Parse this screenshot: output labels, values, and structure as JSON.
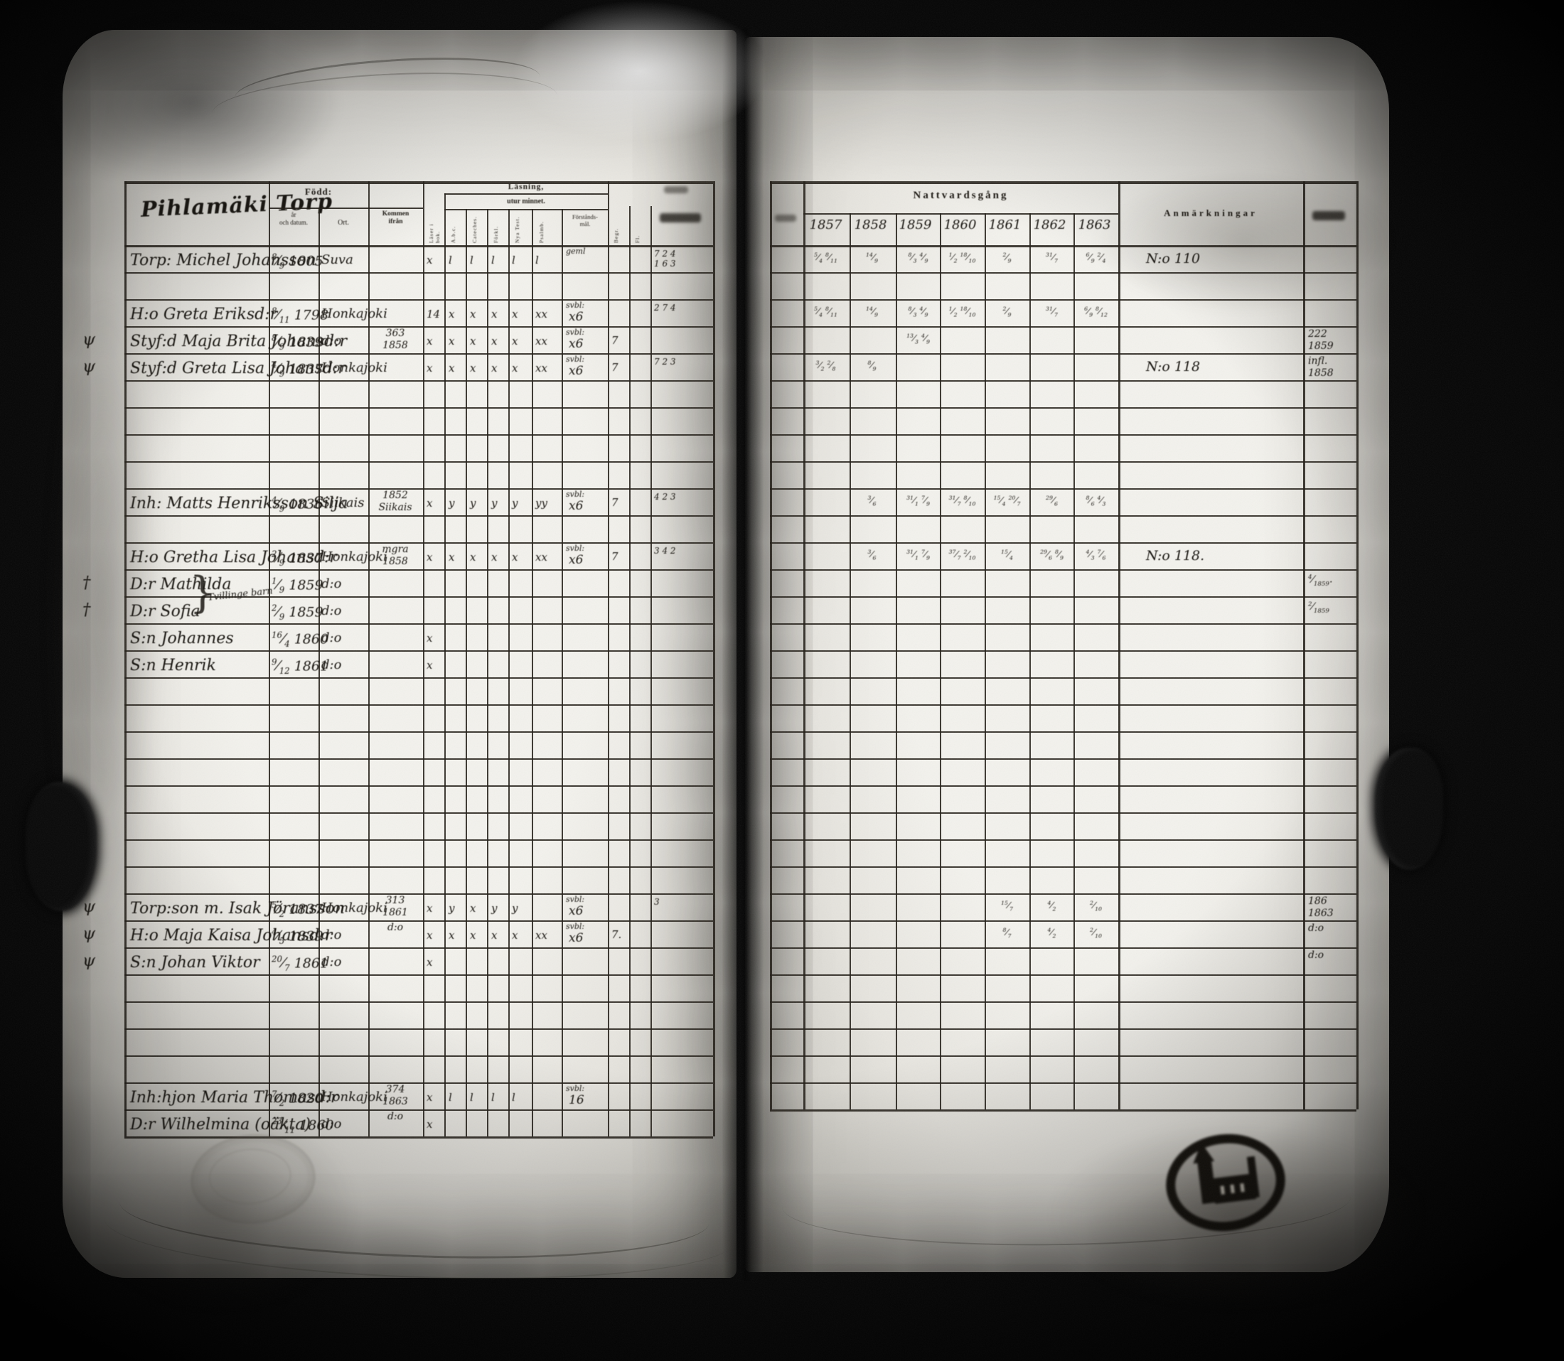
{
  "colors": {
    "ink": "#16130e",
    "paper": "#efede7",
    "background": "#060606"
  },
  "left_page": {
    "title": "Pihlamäki Torp",
    "header": {
      "born_group": "Född:",
      "born_date": "år\noch datum.",
      "born_place": "Ort.",
      "came_from": "Kommen\nifrån",
      "reading_line1": "Läsning,",
      "reading_line2": "utur minnet.",
      "cols": [
        "Läser i bok.",
        "A.b.c.",
        "Cateches.",
        "Förkl.",
        "Nya Test.",
        "Psalmb.",
        "Förstånds-\nmål.",
        "Begr.",
        "Fl."
      ]
    },
    "rows": [
      {
        "i": 0,
        "margin": "",
        "name": "Torp: Michel Johansson",
        "birth": "8/9 1805",
        "ort": "Suva",
        "from": "",
        "m": [
          "x",
          "l",
          "l",
          "l",
          "l",
          "l"
        ],
        "sup": "geml",
        "grade": "",
        "extra": "",
        "frac": "7 2 4\n1 6 3"
      },
      {
        "i": 2,
        "margin": "",
        "name": "H:o Greta Eriksd:r",
        "birth": "8/11 1798",
        "ort": "Honkajoki",
        "from": "",
        "m": [
          "14",
          "x",
          "x",
          "x",
          "x",
          "xx"
        ],
        "sup": "svbl:",
        "grade": "x6",
        "extra": "",
        "frac": "2 7 4"
      },
      {
        "i": 3,
        "margin": "ψ",
        "name": "Styf:d Maja Brita Johansd:r",
        "birth": "8/9 1839",
        "ort": "d:o",
        "from": "363\n1858",
        "m": [
          "x",
          "x",
          "x",
          "x",
          "x",
          "xx"
        ],
        "sup": "svbl:",
        "grade": "x6",
        "extra": "7",
        "frac": ""
      },
      {
        "i": 4,
        "margin": "ψ",
        "name": "Styf:d Greta Lisa Johansd:r",
        "birth": "4/9 1837",
        "ort": "Honkajoki",
        "from": "",
        "m": [
          "x",
          "x",
          "x",
          "x",
          "x",
          "xx"
        ],
        "sup": "svbl:",
        "grade": "x6",
        "extra": "7",
        "frac": "7 2 3"
      },
      {
        "i": 9,
        "margin": "",
        "name": "Inh: Matts Henriksson Silja",
        "birth": "4/9 1836",
        "ort": "Siikais",
        "from": "1852\nSiikais",
        "m": [
          "x",
          "y",
          "y",
          "y",
          "y",
          "yy"
        ],
        "sup": "svbl:",
        "grade": "x6",
        "extra": "7",
        "frac": "4 2 3"
      },
      {
        "i": 11,
        "margin": "",
        "name": "H:o Gretha Lisa Johansd:r",
        "birth": "2/9 1837",
        "ort": "Honkajoki",
        "from": "mgra\n1858",
        "m": [
          "x",
          "x",
          "x",
          "x",
          "x",
          "xx"
        ],
        "sup": "svbl:",
        "grade": "x6",
        "extra": "7",
        "frac": "3 4 2"
      },
      {
        "i": 12,
        "margin": "†",
        "name": "D:r Mathilda",
        "birth": "1/9 1859",
        "ort": "d:o",
        "brace": true,
        "note": "Tvillinge barn"
      },
      {
        "i": 13,
        "margin": "†",
        "name": "D:r Sofia",
        "birth": "2/9 1859",
        "ort": "d:o"
      },
      {
        "i": 14,
        "margin": "",
        "name": "S:n Johannes",
        "birth": "16/4 1860",
        "ort": "d:o",
        "m": [
          "x",
          "",
          "",
          "",
          "",
          ""
        ]
      },
      {
        "i": 15,
        "margin": "",
        "name": "S:n Henrik",
        "birth": "9/12 1861",
        "ort": "d:o",
        "m": [
          "x",
          "",
          "",
          "",
          "",
          ""
        ]
      },
      {
        "i": 24,
        "margin": "ψ",
        "name": "Torp:son m. Isak Jöransson",
        "birth": "5/2 1837",
        "ort": "Honkajoki",
        "from": "313\n1861",
        "m": [
          "x",
          "y",
          "x",
          "y",
          "y",
          ""
        ],
        "sup": "svbl:",
        "grade": "x6",
        "extra": "",
        "frac": "3"
      },
      {
        "i": 25,
        "margin": "ψ",
        "name": "H:o Maja Kaisa Johansd:r",
        "birth": "4/5 1839",
        "ort": "d:o",
        "from": "d:o",
        "m": [
          "x",
          "x",
          "x",
          "x",
          "x",
          "xx"
        ],
        "sup": "svbl:",
        "grade": "x6",
        "extra": "7."
      },
      {
        "i": 26,
        "margin": "ψ",
        "name": "S:n Johan Viktor",
        "birth": "20/7 1861",
        "ort": "d:o",
        "m": [
          "x",
          "",
          "",
          "",
          "",
          ""
        ]
      },
      {
        "i": 31,
        "margin": "",
        "name": "Inh:hjon Maria Thomasd:r",
        "birth": "7/2 1820",
        "ort": "Honkajoki",
        "from": "374\n1863",
        "m": [
          "x",
          "l",
          "l",
          "l",
          "l",
          ""
        ],
        "sup": "svbl:",
        "grade": "16"
      },
      {
        "i": 32,
        "margin": "",
        "name": "D:r Wilhelmina (oäkta)",
        "birth": "23/11 1860",
        "ort": "d:o",
        "from": "d:o",
        "m": [
          "x",
          "",
          "",
          "",
          "",
          ""
        ]
      }
    ]
  },
  "right_page": {
    "header": {
      "communion_group": "Nattvardsgång",
      "years": [
        "1857",
        "1858",
        "1859",
        "1860",
        "1861",
        "1862",
        "1863"
      ],
      "remarks": "Anmärkningar"
    },
    "rows": [
      {
        "i": 0,
        "y": [
          "5/4 8/11",
          "14/9",
          "8/3 4/9",
          "1/2 18/10",
          "2/9",
          "31/7",
          "6/9 2/4"
        ],
        "remark": "N:o 110",
        "edge": ""
      },
      {
        "i": 2,
        "y": [
          "5/4 8/11",
          "14/9",
          "8/3 4/9",
          "1/2 18/10",
          "2/9",
          "31/7",
          "6/9 8/12"
        ],
        "remark": "",
        "edge": ""
      },
      {
        "i": 3,
        "y": [
          "",
          "",
          "13/3 4/9",
          "",
          "",
          "",
          ""
        ],
        "remark": "",
        "edge": "222\n1859"
      },
      {
        "i": 4,
        "y": [
          "3/2 2/8",
          "8/9",
          "",
          "",
          "",
          "",
          ""
        ],
        "remark": "N:o 118",
        "edge": "infl.\n1858"
      },
      {
        "i": 9,
        "y": [
          "",
          "3/6",
          "31/1 7/9",
          "31/7 8/10",
          "15/4 20/7",
          "29/6",
          "8/6 4/3"
        ],
        "remark": "",
        "edge": ""
      },
      {
        "i": 11,
        "y": [
          "",
          "3/6",
          "31/1 7/9",
          "37/7 2/10",
          "15/4",
          "29/6 8/9",
          "4/3 7/6"
        ],
        "remark": "N:o 118.",
        "edge": ""
      },
      {
        "i": 12,
        "y": [
          "",
          "",
          "",
          "",
          "",
          "",
          ""
        ],
        "remark": "",
        "edge": "4/1859."
      },
      {
        "i": 13,
        "y": [
          "",
          "",
          "",
          "",
          "",
          "",
          ""
        ],
        "remark": "",
        "edge": "2/1859"
      },
      {
        "i": 24,
        "y": [
          "",
          "",
          "",
          "",
          "15/7",
          "4/2",
          "2/10"
        ],
        "remark": "",
        "edge": "186\n1863"
      },
      {
        "i": 25,
        "y": [
          "",
          "",
          "",
          "",
          "8/7",
          "4/2",
          "2/10"
        ],
        "remark": "",
        "edge": "d:o"
      },
      {
        "i": 26,
        "y": [
          "",
          "",
          "",
          "",
          "",
          "",
          ""
        ],
        "remark": "",
        "edge": "d:o"
      }
    ]
  },
  "stamps": {
    "church_stamp_icon": "parish-church-stamp",
    "embossed_seal_icon": "embossed-seal"
  }
}
